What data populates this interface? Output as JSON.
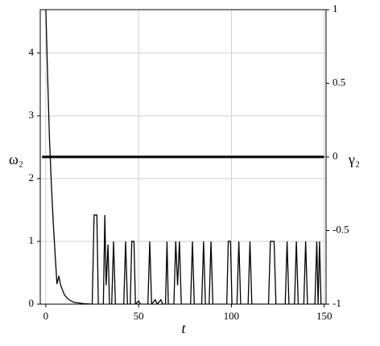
{
  "chart_data": {
    "type": "line",
    "xlabel": "t",
    "ylabel": "ω₂",
    "y2label": "γ₂",
    "xlim": [
      -3,
      151
    ],
    "xticks": [
      0,
      50,
      100,
      150
    ],
    "ylim": [
      0,
      4.69
    ],
    "yticks": [
      0,
      1,
      2,
      3,
      4
    ],
    "y2lim": [
      -1,
      1
    ],
    "y2ticks": [
      -1,
      -0.5,
      0,
      0.5,
      1
    ],
    "grid": true,
    "series": [
      {
        "name": "ω₂",
        "color": "#000000",
        "x": [
          0,
          1,
          2,
          3,
          4,
          5,
          6,
          7,
          8,
          10,
          12,
          15,
          20,
          25,
          26,
          27.5,
          28.3,
          31,
          31.8,
          32.5,
          33.5,
          34.3,
          35.5,
          36.5,
          37.5,
          42,
          43,
          44,
          45.5,
          46.3,
          47.5,
          48.3,
          50,
          51,
          55,
          56,
          57,
          59,
          60,
          62,
          63,
          64.5,
          65.3,
          66,
          69,
          70,
          71,
          72,
          73,
          78,
          79,
          80,
          84,
          85,
          86,
          88,
          89,
          90,
          97.5,
          98.3,
          99.5,
          100.3,
          103,
          104,
          105,
          109,
          110,
          111,
          120,
          121,
          123,
          124,
          129,
          130,
          131,
          134,
          135,
          136,
          139,
          140,
          141,
          145,
          146,
          146.7,
          147.5,
          148.3,
          150
        ],
        "values": [
          4.7,
          3.6,
          2.6,
          1.9,
          1.3,
          0.8,
          0.32,
          0.45,
          0.3,
          0.15,
          0.08,
          0.03,
          0.01,
          0,
          1.42,
          1.42,
          0,
          0,
          1.42,
          0.3,
          0.95,
          0,
          0,
          1,
          0,
          0,
          1,
          0,
          0,
          1,
          1,
          0,
          0.05,
          0,
          0,
          1,
          0,
          0.07,
          0,
          0.07,
          0,
          0,
          1,
          0,
          0,
          1,
          0.3,
          1,
          0,
          0,
          1,
          0,
          0,
          1,
          0,
          0,
          1,
          0,
          0,
          1,
          1,
          0,
          0,
          1,
          0,
          0,
          1,
          0,
          0,
          1,
          1,
          0,
          0,
          1,
          0,
          0,
          1,
          0,
          0,
          1,
          0,
          0,
          1,
          0,
          1,
          0,
          0
        ]
      },
      {
        "name": "γ₂",
        "color": "#000000",
        "axis": "y2",
        "x": [
          -2,
          150
        ],
        "values": [
          0,
          0
        ]
      }
    ]
  }
}
